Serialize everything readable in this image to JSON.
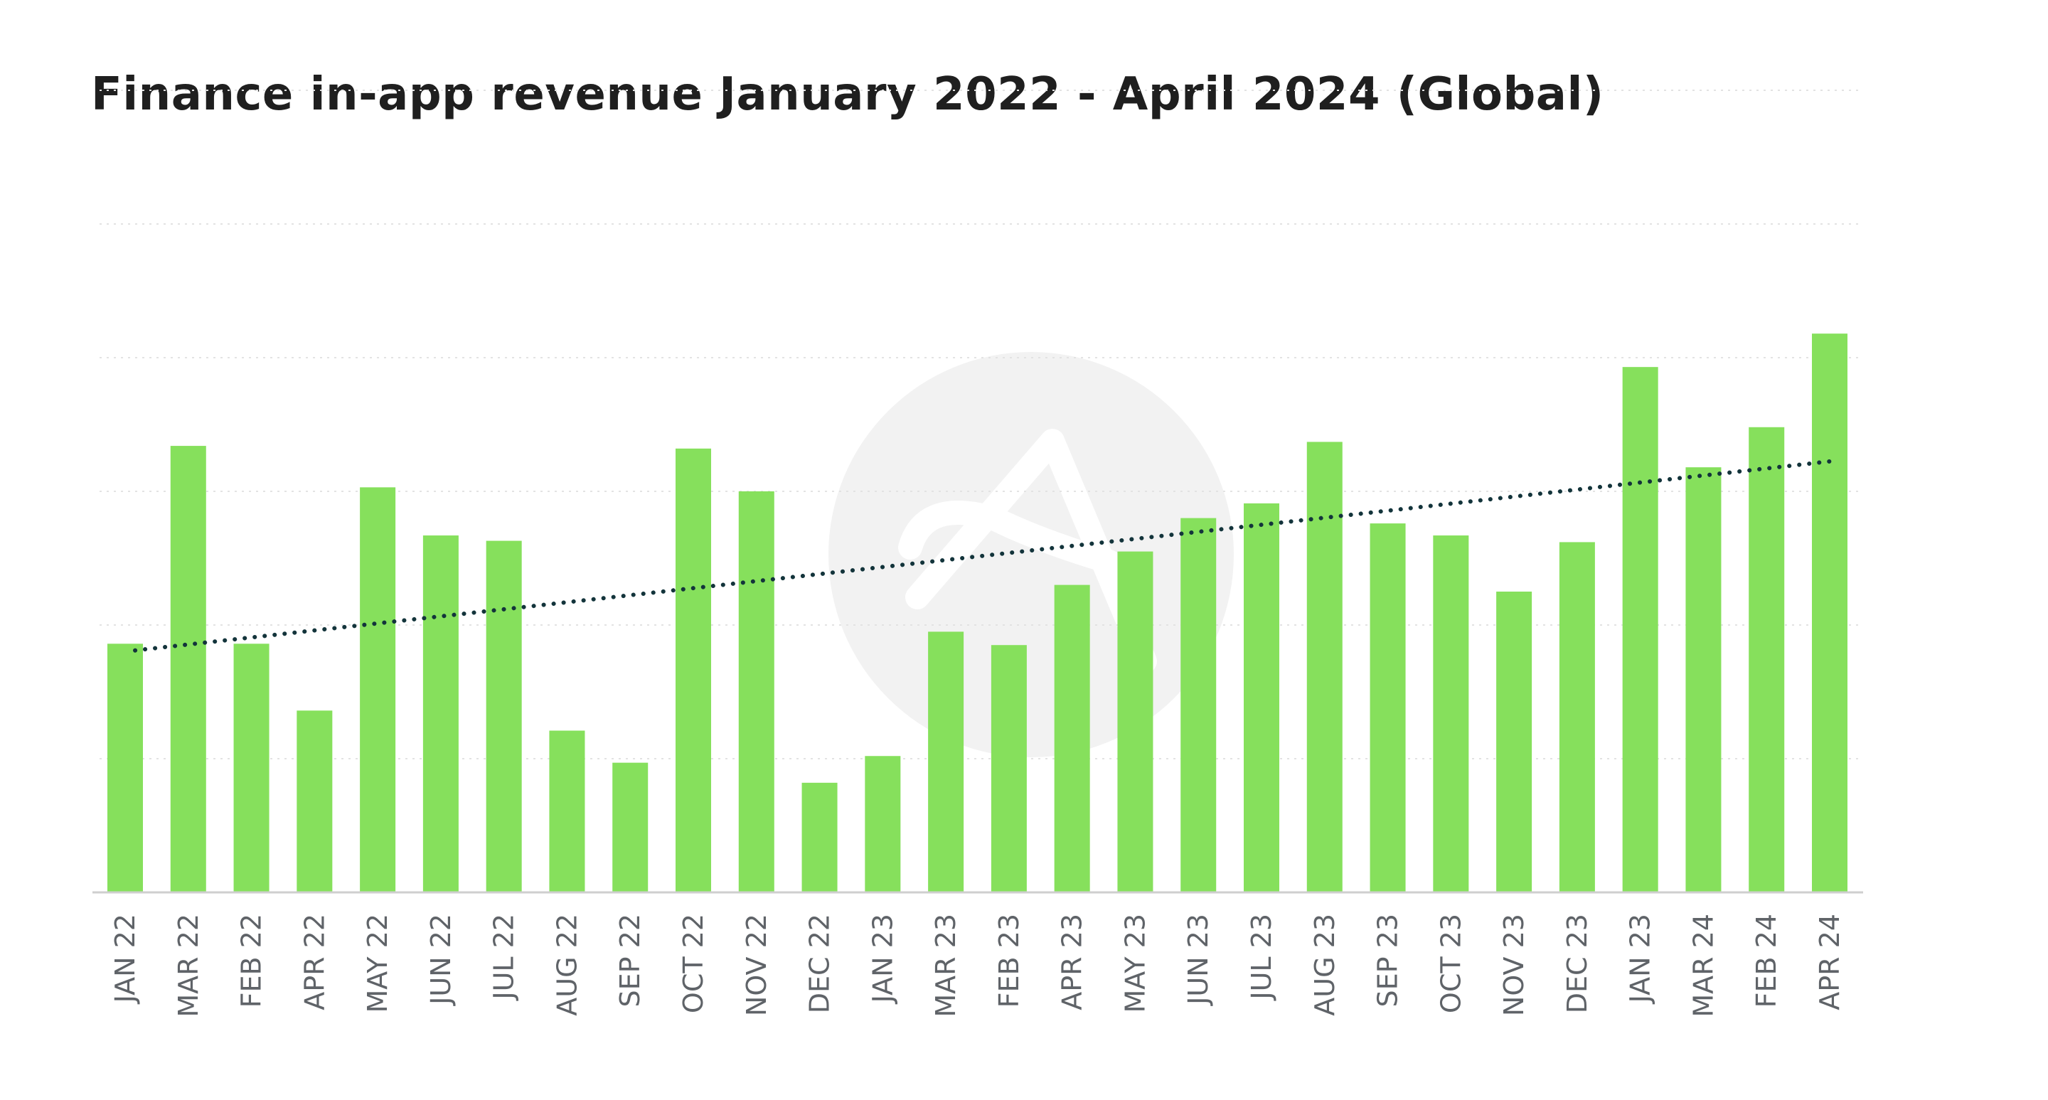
{
  "chart_data": {
    "type": "bar",
    "title": "Finance in-app revenue January 2022 - April 2024 (Global)",
    "xlabel": "",
    "ylabel": "",
    "ylim": [
      0,
      50
    ],
    "y_gridlines": [
      10,
      20,
      30,
      40,
      50
    ],
    "y_tick_labels_shown": false,
    "categories": [
      "JAN 22",
      "MAR 22",
      "FEB 22",
      "APR 22",
      "MAY 22",
      "JUN 22",
      "JUL 22",
      "AUG 22",
      "SEP 22",
      "OCT 22",
      "NOV 22",
      "DEC 22",
      "JAN 23",
      "MAR 23",
      "FEB 23",
      "APR 23",
      "MAY 23",
      "JUN 23",
      "JUL 23",
      "AUG 23",
      "SEP 23",
      "OCT 23",
      "NOV 23",
      "DEC 23",
      "JAN 23",
      "MAR 24",
      "FEB 24",
      "APR 24"
    ],
    "series": [
      {
        "name": "Finance in-app revenue",
        "color": "#86e05c",
        "values": [
          18.6,
          33.4,
          18.6,
          13.6,
          30.3,
          26.7,
          26.3,
          12.1,
          9.7,
          33.2,
          30.0,
          8.2,
          10.2,
          19.5,
          18.5,
          23.0,
          25.5,
          28.0,
          29.1,
          33.7,
          27.6,
          26.7,
          22.5,
          26.2,
          39.3,
          31.8,
          34.8,
          41.8
        ]
      }
    ],
    "trendline": {
      "style": "dotted",
      "color": "#13343b",
      "start_value": 18.1,
      "end_value": 32.3
    }
  }
}
